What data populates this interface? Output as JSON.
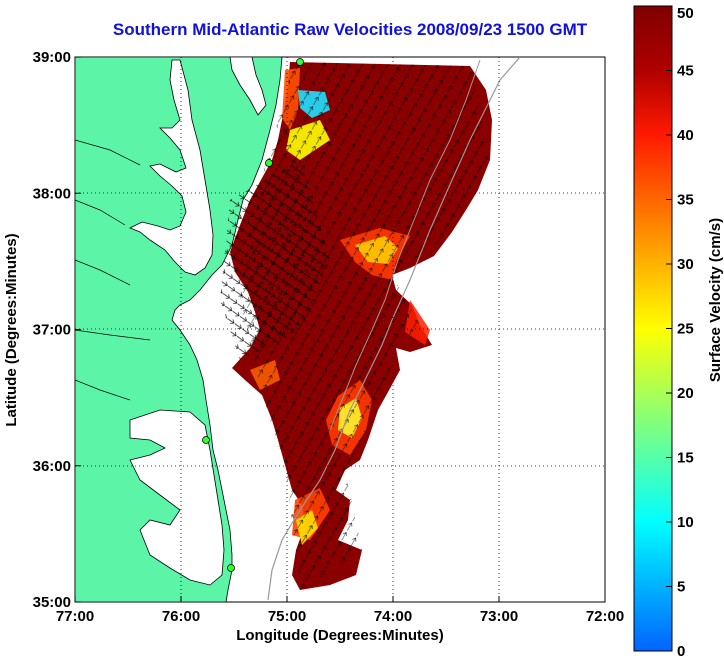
{
  "title": "Southern Mid-Atlantic Raw Velocities 2008/09/23 1500 GMT",
  "x_axis": {
    "label": "Longitude (Degrees:Minutes)",
    "ticks": [
      {
        "value": -77,
        "label": "77:00"
      },
      {
        "value": -76,
        "label": "76:00"
      },
      {
        "value": -75,
        "label": "75:00"
      },
      {
        "value": -74,
        "label": "74:00"
      },
      {
        "value": -73,
        "label": "73:00"
      },
      {
        "value": -72,
        "label": "72:00"
      }
    ],
    "range": [
      -77,
      -72
    ]
  },
  "y_axis": {
    "label": "Latitude (Degrees:Minutes)",
    "ticks": [
      {
        "value": 35,
        "label": "35:00"
      },
      {
        "value": 36,
        "label": "36:00"
      },
      {
        "value": 37,
        "label": "37:00"
      },
      {
        "value": 38,
        "label": "38:00"
      },
      {
        "value": 39,
        "label": "39:00"
      }
    ],
    "range": [
      35,
      39
    ]
  },
  "colorbar": {
    "label": "Surface Velocity (cm/s)",
    "range": [
      0,
      50
    ],
    "ticks": [
      "0",
      "5",
      "10",
      "15",
      "20",
      "25",
      "30",
      "35",
      "40",
      "45",
      "50"
    ]
  },
  "colors": {
    "land": "#5cf5a8",
    "title": "#1010e0",
    "grid": "#000000"
  },
  "grid": true
}
